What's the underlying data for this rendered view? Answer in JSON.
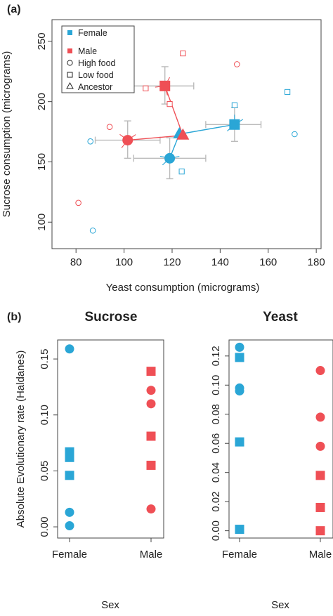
{
  "colors": {
    "female": "#2aa6d6",
    "male": "#ef4f55",
    "error_bar": "#bbbbbb",
    "axis": "#444444"
  },
  "chart_data": [
    {
      "panel": "(a)",
      "type": "scatter",
      "xlabel": "Yeast consumption (micrograms)",
      "ylabel": "Sucrose consumption (micrograms)",
      "xlim": [
        70,
        182
      ],
      "ylim": [
        78,
        268
      ],
      "xticks": [
        80,
        100,
        120,
        140,
        160,
        180
      ],
      "yticks": [
        100,
        150,
        200,
        250
      ],
      "legend": {
        "placement": "top-left",
        "entries": [
          {
            "label": "Female",
            "marker": "filled-square",
            "color": "#2aa6d6"
          },
          {
            "label": "Male",
            "marker": "filled-square",
            "color": "#ef4f55"
          },
          {
            "label": "High food",
            "marker": "open-circle",
            "color": "#222222"
          },
          {
            "label": "Low food",
            "marker": "open-square",
            "color": "#222222"
          },
          {
            "label": "Ancestor",
            "marker": "open-triangle",
            "color": "#222222"
          }
        ]
      },
      "ancestors": [
        {
          "sex": "Female",
          "x": 123,
          "y": 173
        },
        {
          "sex": "Male",
          "x": 124.5,
          "y": 172
        }
      ],
      "group_means": [
        {
          "sex": "Female",
          "food": "High food",
          "x": 119,
          "y": 153,
          "xerr": [
            104,
            134
          ],
          "yerr": [
            136,
            170
          ]
        },
        {
          "sex": "Female",
          "food": "Low food",
          "x": 146,
          "y": 181,
          "xerr": [
            134,
            157
          ],
          "yerr": [
            167,
            195
          ]
        },
        {
          "sex": "Male",
          "food": "High food",
          "x": 101.5,
          "y": 168,
          "xerr": [
            88,
            115
          ],
          "yerr": [
            153,
            184
          ]
        },
        {
          "sex": "Male",
          "food": "Low food",
          "x": 117,
          "y": 213,
          "xerr": [
            104,
            129
          ],
          "yerr": [
            198,
            229
          ]
        }
      ],
      "replicates": [
        {
          "sex": "Female",
          "food": "High food",
          "x": 86,
          "y": 167
        },
        {
          "sex": "Female",
          "food": "High food",
          "x": 87,
          "y": 93
        },
        {
          "sex": "Female",
          "food": "High food",
          "x": 171,
          "y": 173
        },
        {
          "sex": "Female",
          "food": "Low food",
          "x": 124,
          "y": 142
        },
        {
          "sex": "Female",
          "food": "Low food",
          "x": 146,
          "y": 197
        },
        {
          "sex": "Female",
          "food": "Low food",
          "x": 168,
          "y": 208
        },
        {
          "sex": "Male",
          "food": "High food",
          "x": 81,
          "y": 116
        },
        {
          "sex": "Male",
          "food": "High food",
          "x": 94,
          "y": 179
        },
        {
          "sex": "Male",
          "food": "High food",
          "x": 147,
          "y": 231
        },
        {
          "sex": "Male",
          "food": "Low food",
          "x": 109,
          "y": 211
        },
        {
          "sex": "Male",
          "food": "Low food",
          "x": 119,
          "y": 198
        },
        {
          "sex": "Male",
          "food": "Low food",
          "x": 124.5,
          "y": 240
        }
      ]
    },
    {
      "panel": "(b)",
      "title": "Sucrose",
      "type": "scatter",
      "xlabel": "Sex",
      "ylabel": "Absolute Evolutionary rate (Haldanes)",
      "categories": [
        "Female",
        "Male"
      ],
      "ylim": [
        -0.01,
        0.167
      ],
      "yticks": [
        0.0,
        0.05,
        0.1,
        0.15
      ],
      "ytick_labels": [
        "0.00",
        "0.05",
        "0.10",
        "0.15"
      ],
      "points": [
        {
          "category": "Female",
          "marker": "circle",
          "y": 0.159
        },
        {
          "category": "Female",
          "marker": "square",
          "y": 0.067
        },
        {
          "category": "Female",
          "marker": "square",
          "y": 0.062
        },
        {
          "category": "Female",
          "marker": "square",
          "y": 0.046
        },
        {
          "category": "Female",
          "marker": "circle",
          "y": 0.013
        },
        {
          "category": "Female",
          "marker": "circle",
          "y": 0.001
        },
        {
          "category": "Male",
          "marker": "square",
          "y": 0.139
        },
        {
          "category": "Male",
          "marker": "circle",
          "y": 0.122
        },
        {
          "category": "Male",
          "marker": "circle",
          "y": 0.11
        },
        {
          "category": "Male",
          "marker": "square",
          "y": 0.081
        },
        {
          "category": "Male",
          "marker": "square",
          "y": 0.055
        },
        {
          "category": "Male",
          "marker": "circle",
          "y": 0.016
        }
      ]
    },
    {
      "title": "Yeast",
      "type": "scatter",
      "xlabel": "Sex",
      "ylabel": "",
      "categories": [
        "Female",
        "Male"
      ],
      "ylim": [
        -0.005,
        0.131
      ],
      "yticks": [
        0.0,
        0.02,
        0.04,
        0.06,
        0.08,
        0.1,
        0.12
      ],
      "ytick_labels": [
        "0.00",
        "0.02",
        "0.04",
        "0.06",
        "0.08",
        "0.10",
        "0.12"
      ],
      "points": [
        {
          "category": "Female",
          "marker": "circle",
          "y": 0.126
        },
        {
          "category": "Female",
          "marker": "square",
          "y": 0.119
        },
        {
          "category": "Female",
          "marker": "circle",
          "y": 0.098
        },
        {
          "category": "Female",
          "marker": "circle",
          "y": 0.096
        },
        {
          "category": "Female",
          "marker": "square",
          "y": 0.061
        },
        {
          "category": "Female",
          "marker": "square",
          "y": 0.001
        },
        {
          "category": "Male",
          "marker": "circle",
          "y": 0.11
        },
        {
          "category": "Male",
          "marker": "circle",
          "y": 0.078
        },
        {
          "category": "Male",
          "marker": "circle",
          "y": 0.058
        },
        {
          "category": "Male",
          "marker": "square",
          "y": 0.038
        },
        {
          "category": "Male",
          "marker": "square",
          "y": 0.016
        },
        {
          "category": "Male",
          "marker": "square",
          "y": 0.0
        }
      ]
    }
  ]
}
